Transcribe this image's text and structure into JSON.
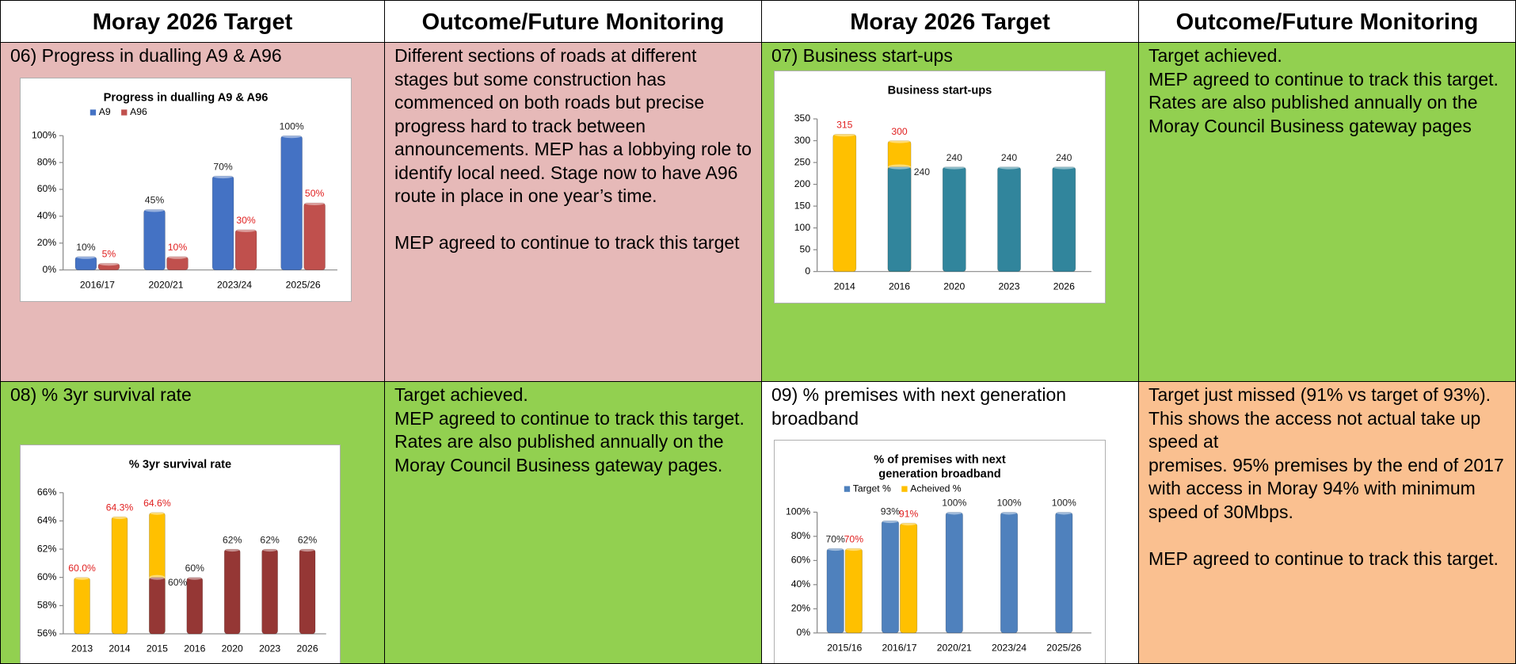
{
  "table": {
    "headers": [
      "Moray 2026 Target",
      "Outcome/Future Monitoring",
      "Moray 2026 Target",
      "Outcome/Future Monitoring"
    ],
    "rows": [
      [
        {
          "label": "06) Progress in dualling A9 & A96",
          "chart": {
            "type": "bar",
            "title": "Progress in dualling A9 & A96",
            "categories": [
              "2016/17",
              "2020/21",
              "2023/24",
              "2025/26"
            ],
            "series": [
              {
                "name": "A9",
                "color": "#4472c4",
                "label_color": "#222222",
                "values": [
                  10,
                  45,
                  70,
                  100
                ],
                "value_labels": [
                  "10%",
                  "45%",
                  "70%",
                  "100%"
                ]
              },
              {
                "name": "A96",
                "color": "#c0504d",
                "label_color": "#e02020",
                "values": [
                  5,
                  10,
                  30,
                  50
                ],
                "value_labels": [
                  "5%",
                  "10%",
                  "30%",
                  "50%"
                ]
              }
            ],
            "ylim": [
              0,
              100
            ],
            "yticks": [
              {
                "value": 0,
                "label": "0%"
              },
              {
                "value": 20,
                "label": "20%"
              },
              {
                "value": 40,
                "label": "40%"
              },
              {
                "value": 60,
                "label": "60%"
              },
              {
                "value": 80,
                "label": "80%"
              },
              {
                "value": 100,
                "label": "100%"
              }
            ],
            "overlap": false
          }
        },
        {
          "blocks": [
            [
              "Different sections of roads at different stages but some construction has commenced on both roads but precise progress hard to track between announcements.  MEP has a lobbying role to identify local need. Stage now to have A96 route in place in one year’s time."
            ],
            [
              "MEP agreed to continue to track this target"
            ]
          ]
        },
        {
          "label": "07) Business start-ups",
          "chart": {
            "type": "bar",
            "title": "Business start-ups",
            "categories": [
              "2014",
              "2016",
              "2020",
              "2023",
              "2026"
            ],
            "series": [
              {
                "color": "#ffc000",
                "label_color": "#e02020",
                "values": [
                  315,
                  300,
                  null,
                  null,
                  null
                ]
              },
              {
                "color": "#31859c",
                "label_color": "#222222",
                "values": [
                  null,
                  240,
                  240,
                  240,
                  240
                ]
              }
            ],
            "ylim": [
              0,
              350
            ],
            "yticks": [
              0,
              50,
              100,
              150,
              200,
              250,
              300,
              350
            ],
            "overlap": true
          }
        },
        {
          "blocks": [
            [
              "Target achieved.",
              " MEP agreed to continue to track this target.  Rates are also published annually on the Moray Council Business gateway pages"
            ]
          ]
        }
      ],
      [
        {
          "label": "08) % 3yr survival rate",
          "chart": {
            "type": "bar",
            "title": "% 3yr survival rate",
            "categories": [
              "2013",
              "2014",
              "2015",
              "2016",
              "2020",
              "2023",
              "2026"
            ],
            "series": [
              {
                "color": "#ffc000",
                "label_color": "#e02020",
                "values": [
                  60.0,
                  64.3,
                  64.6,
                  null,
                  null,
                  null,
                  null
                ],
                "value_labels": [
                  "60.0%",
                  "64.3%",
                  "64.6%",
                  null,
                  null,
                  null,
                  null
                ]
              },
              {
                "color": "#953735",
                "label_color": "#222222",
                "values": [
                  null,
                  null,
                  60,
                  60,
                  62,
                  62,
                  62
                ],
                "value_labels": [
                  null,
                  null,
                  "60%",
                  "60%",
                  "62%",
                  "62%",
                  "62%"
                ]
              }
            ],
            "ylim": [
              56,
              66
            ],
            "yticks": [
              {
                "value": 56,
                "label": "56%"
              },
              {
                "value": 58,
                "label": "58%"
              },
              {
                "value": 60,
                "label": "60%"
              },
              {
                "value": 62,
                "label": "62%"
              },
              {
                "value": 64,
                "label": "64%"
              },
              {
                "value": 66,
                "label": "66%"
              }
            ],
            "overlap": true
          }
        },
        {
          "blocks": [
            [
              "Target achieved.",
              "MEP agreed to continue to track this target.  Rates are also published annually on the Moray Council Business gateway pages."
            ]
          ]
        },
        {
          "label": "09) % premises with next generation broadband",
          "chart": {
            "type": "bar",
            "title": [
              "% of premises with next",
              "generation broadband"
            ],
            "categories": [
              "2015/16",
              "2016/17",
              "2020/21",
              "2023/24",
              "2025/26"
            ],
            "series": [
              {
                "name": "Target %",
                "color": "#4f81bd",
                "label_color": "#222222",
                "values": [
                  70,
                  93,
                  100,
                  100,
                  100
                ],
                "value_labels": [
                  "70%",
                  "93%",
                  "100%",
                  "100%",
                  "100%"
                ]
              },
              {
                "name": "Acheived %",
                "color": "#ffc000",
                "label_color": "#e02020",
                "values": [
                  70,
                  91,
                  null,
                  null,
                  null
                ],
                "value_labels": [
                  "70%",
                  "91%",
                  null,
                  null,
                  null
                ]
              }
            ],
            "ylim": [
              0,
              100
            ],
            "yticks": [
              {
                "value": 0,
                "label": "0%"
              },
              {
                "value": 20,
                "label": "20%"
              },
              {
                "value": 40,
                "label": "40%"
              },
              {
                "value": 60,
                "label": "60%"
              },
              {
                "value": 80,
                "label": "80%"
              },
              {
                "value": 100,
                "label": "100%"
              }
            ],
            "overlap": false
          }
        },
        {
          "blocks": [
            [
              "Target just missed (91% vs target of 93%). This shows the access not actual take up speed at",
              "premises.  95% premises by the end of 2017 with access in Moray 94% with minimum speed of 30Mbps."
            ],
            [
              "MEP agreed to continue to track this target."
            ]
          ]
        }
      ]
    ]
  }
}
